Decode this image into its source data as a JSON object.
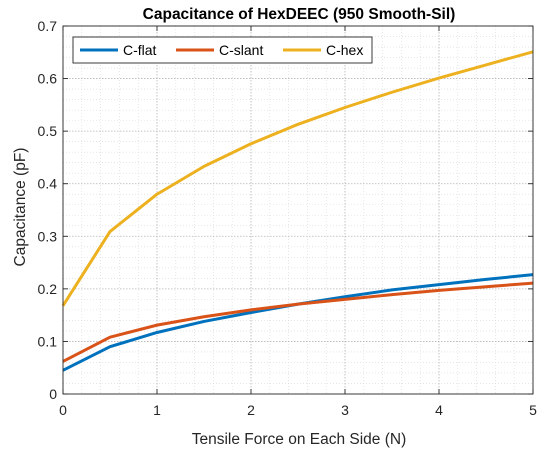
{
  "chart_data": {
    "type": "line",
    "title": "Capacitance of HexDEEC (950 Smooth-Sil)",
    "xlabel": "Tensile Force on Each Side (N)",
    "ylabel": "Capacitance (pF)",
    "xlim": [
      0,
      5
    ],
    "ylim": [
      0,
      0.7
    ],
    "xticks": [
      0,
      1,
      2,
      3,
      4,
      5
    ],
    "yticks": [
      0,
      0.1,
      0.2,
      0.3,
      0.4,
      0.5,
      0.6,
      0.7
    ],
    "grid": "major and minor, dotted",
    "legend": {
      "placement": "top-left",
      "orientation": "horizontal"
    },
    "series": [
      {
        "name": "C-flat",
        "color": "#0072BD",
        "x": [
          0,
          0.5,
          1,
          1.5,
          2,
          2.5,
          3,
          3.5,
          4,
          4.5,
          5
        ],
        "y": [
          0.045,
          0.09,
          0.117,
          0.138,
          0.155,
          0.171,
          0.185,
          0.198,
          0.208,
          0.218,
          0.227
        ]
      },
      {
        "name": "C-slant",
        "color": "#D95319",
        "x": [
          0,
          0.5,
          1,
          1.5,
          2,
          2.5,
          3,
          3.5,
          4,
          4.5,
          5
        ],
        "y": [
          0.062,
          0.108,
          0.131,
          0.147,
          0.16,
          0.171,
          0.18,
          0.189,
          0.197,
          0.204,
          0.211
        ]
      },
      {
        "name": "C-hex",
        "color": "#EDB120",
        "x": [
          0,
          0.5,
          1,
          1.5,
          2,
          2.5,
          3,
          3.5,
          4,
          4.5,
          5
        ],
        "y": [
          0.168,
          0.309,
          0.38,
          0.433,
          0.476,
          0.513,
          0.545,
          0.574,
          0.601,
          0.626,
          0.651
        ]
      }
    ]
  }
}
